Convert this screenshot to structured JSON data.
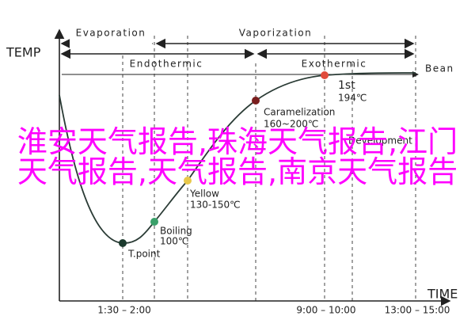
{
  "axes": {
    "y_label": "TEMP",
    "x_label": "TIME"
  },
  "phases": [
    "Evaporation",
    "Vaporization"
  ],
  "reactions": [
    "Endothermic",
    "Exothermic"
  ],
  "bean_label": "Bean",
  "points": [
    {
      "label": "T.point"
    },
    {
      "label": "Boiling",
      "temp": "100℃"
    },
    {
      "label": "Yellow",
      "temp": "130-150℃"
    },
    {
      "label": "Caramelization",
      "temp": "160~200℃"
    },
    {
      "label": "Development"
    },
    {
      "label": "1st",
      "temp": "194℃"
    }
  ],
  "time_labels": [
    "1:30 – 2:00",
    "9:00 – 10:00",
    "13:00 – 15:00"
  ],
  "overlay_text": "淮安天气报告,珠海天气报告,江门天气报告,天气报告,南京天气报告"
}
